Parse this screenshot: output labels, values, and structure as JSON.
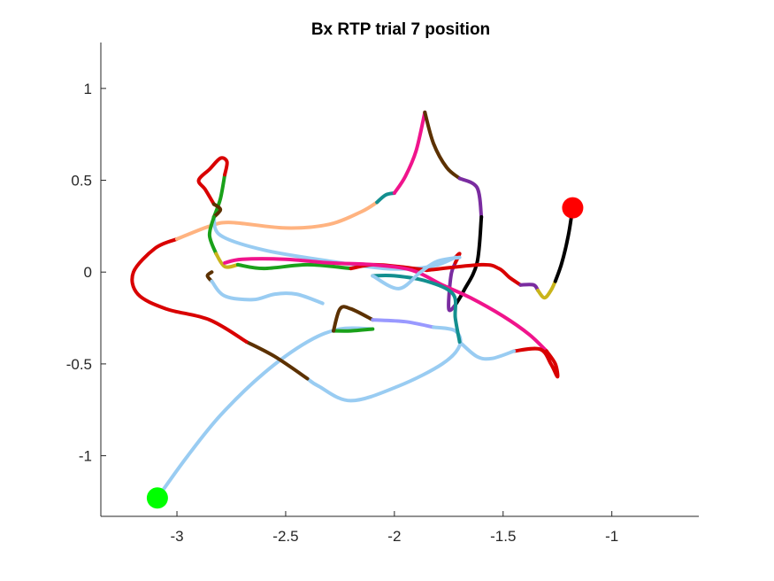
{
  "chart_data": {
    "type": "line",
    "title": "Bx  RTP trial 7 position",
    "xlabel": "",
    "ylabel": "",
    "xlim": [
      -3.35,
      -0.6
    ],
    "ylim": [
      -1.33,
      1.25
    ],
    "xticks": [
      -3,
      -2.5,
      -2,
      -1.5,
      -1
    ],
    "xtick_labels": [
      "-3",
      "-2.5",
      "-2",
      "-1.5",
      "-1"
    ],
    "yticks": [
      -1,
      -0.5,
      0,
      0.5,
      1
    ],
    "ytick_labels": [
      "-1",
      "-0.5",
      "0",
      "0.5",
      "1"
    ],
    "grid": false,
    "box": false,
    "legend": "none",
    "start_marker": {
      "x": -3.09,
      "y": -1.23,
      "color": "#00ff00"
    },
    "end_marker": {
      "x": -1.18,
      "y": 0.35,
      "color": "#ff0000"
    },
    "segments": [
      {
        "color": "#99ccf2",
        "points": [
          [
            -3.09,
            -1.23
          ],
          [
            -2.95,
            -1.0
          ],
          [
            -2.8,
            -0.78
          ],
          [
            -2.6,
            -0.55
          ],
          [
            -2.4,
            -0.38
          ],
          [
            -2.25,
            -0.31
          ],
          [
            -2.1,
            -0.31
          ]
        ]
      },
      {
        "color": "#1aa11a",
        "points": [
          [
            -2.1,
            -0.31
          ],
          [
            -2.2,
            -0.32
          ],
          [
            -2.28,
            -0.32
          ]
        ]
      },
      {
        "color": "#5c3100",
        "points": [
          [
            -2.28,
            -0.32
          ],
          [
            -2.25,
            -0.2
          ],
          [
            -2.2,
            -0.2
          ],
          [
            -2.1,
            -0.26
          ]
        ]
      },
      {
        "color": "#9999ff",
        "points": [
          [
            -2.1,
            -0.26
          ],
          [
            -1.95,
            -0.27
          ],
          [
            -1.82,
            -0.3
          ]
        ]
      },
      {
        "color": "#99ccf2",
        "points": [
          [
            -1.82,
            -0.3
          ],
          [
            -1.72,
            -0.32
          ],
          [
            -1.7,
            -0.4
          ],
          [
            -1.78,
            -0.5
          ],
          [
            -1.98,
            -0.62
          ],
          [
            -2.2,
            -0.7
          ],
          [
            -2.35,
            -0.62
          ],
          [
            -2.4,
            -0.58
          ]
        ]
      },
      {
        "color": "#5c3100",
        "points": [
          [
            -2.4,
            -0.58
          ],
          [
            -2.55,
            -0.46
          ],
          [
            -2.68,
            -0.38
          ]
        ]
      },
      {
        "color": "#d90000",
        "points": [
          [
            -2.68,
            -0.38
          ],
          [
            -2.85,
            -0.26
          ],
          [
            -3.05,
            -0.2
          ],
          [
            -3.18,
            -0.12
          ],
          [
            -3.2,
            0.0
          ],
          [
            -3.1,
            0.13
          ],
          [
            -3.0,
            0.18
          ]
        ]
      },
      {
        "color": "#ffb380",
        "points": [
          [
            -3.0,
            0.18
          ],
          [
            -2.85,
            0.25
          ],
          [
            -2.75,
            0.27
          ],
          [
            -2.5,
            0.24
          ],
          [
            -2.3,
            0.26
          ],
          [
            -2.15,
            0.33
          ],
          [
            -2.08,
            0.38
          ]
        ]
      },
      {
        "color": "#138f8f",
        "points": [
          [
            -2.08,
            0.38
          ],
          [
            -2.04,
            0.42
          ],
          [
            -2.0,
            0.43
          ]
        ]
      },
      {
        "color": "#f0148c",
        "points": [
          [
            -2.0,
            0.43
          ],
          [
            -1.95,
            0.52
          ],
          [
            -1.9,
            0.66
          ],
          [
            -1.86,
            0.87
          ]
        ]
      },
      {
        "color": "#5c3100",
        "points": [
          [
            -1.86,
            0.87
          ],
          [
            -1.82,
            0.7
          ],
          [
            -1.76,
            0.57
          ],
          [
            -1.7,
            0.51
          ]
        ]
      },
      {
        "color": "#7a2ca0",
        "points": [
          [
            -1.7,
            0.51
          ],
          [
            -1.62,
            0.46
          ],
          [
            -1.6,
            0.3
          ]
        ]
      },
      {
        "color": "#000000",
        "points": [
          [
            -1.6,
            0.3
          ],
          [
            -1.62,
            0.05
          ],
          [
            -1.68,
            -0.1
          ],
          [
            -1.72,
            -0.18
          ]
        ]
      },
      {
        "color": "#7a2ca0",
        "points": [
          [
            -1.72,
            -0.18
          ],
          [
            -1.75,
            -0.2
          ],
          [
            -1.74,
            -0.02
          ],
          [
            -1.72,
            0.05
          ]
        ]
      },
      {
        "color": "#d90000",
        "points": [
          [
            -1.72,
            0.05
          ],
          [
            -1.7,
            0.1
          ],
          [
            -1.72,
            0.08
          ]
        ]
      },
      {
        "color": "#99ccf2",
        "points": [
          [
            -1.72,
            0.08
          ],
          [
            -1.8,
            0.04
          ],
          [
            -1.9,
            0.02
          ],
          [
            -2.05,
            0.02
          ],
          [
            -2.3,
            0.06
          ],
          [
            -2.6,
            0.12
          ],
          [
            -2.8,
            0.2
          ],
          [
            -2.83,
            0.3
          ]
        ]
      },
      {
        "color": "#1aa11a",
        "points": [
          [
            -2.83,
            0.3
          ],
          [
            -2.8,
            0.4
          ],
          [
            -2.78,
            0.53
          ]
        ]
      },
      {
        "color": "#d90000",
        "points": [
          [
            -2.78,
            0.53
          ],
          [
            -2.77,
            0.6
          ],
          [
            -2.8,
            0.62
          ],
          [
            -2.85,
            0.56
          ],
          [
            -2.9,
            0.5
          ],
          [
            -2.87,
            0.45
          ],
          [
            -2.83,
            0.37
          ]
        ]
      },
      {
        "color": "#5c3100",
        "points": [
          [
            -2.83,
            0.37
          ],
          [
            -2.8,
            0.34
          ],
          [
            -2.83,
            0.3
          ]
        ]
      },
      {
        "color": "#1aa11a",
        "points": [
          [
            -2.83,
            0.3
          ],
          [
            -2.85,
            0.2
          ],
          [
            -2.82,
            0.1
          ]
        ]
      },
      {
        "color": "#c9b41a",
        "points": [
          [
            -2.82,
            0.1
          ],
          [
            -2.78,
            0.03
          ],
          [
            -2.72,
            0.04
          ]
        ]
      },
      {
        "color": "#1aa11a",
        "points": [
          [
            -2.72,
            0.04
          ],
          [
            -2.6,
            0.02
          ],
          [
            -2.4,
            0.04
          ],
          [
            -2.2,
            0.02
          ]
        ]
      },
      {
        "color": "#d90000",
        "points": [
          [
            -2.2,
            0.02
          ],
          [
            -2.1,
            0.04
          ],
          [
            -1.98,
            0.03
          ],
          [
            -1.85,
            0.01
          ]
        ]
      },
      {
        "color": "#d90000",
        "points": [
          [
            -1.85,
            0.01
          ],
          [
            -1.6,
            0.04
          ],
          [
            -1.52,
            0.02
          ],
          [
            -1.47,
            -0.03
          ],
          [
            -1.42,
            -0.07
          ]
        ]
      },
      {
        "color": "#7a2ca0",
        "points": [
          [
            -1.42,
            -0.07
          ],
          [
            -1.36,
            -0.07
          ],
          [
            -1.34,
            -0.1
          ]
        ]
      },
      {
        "color": "#c9b41a",
        "points": [
          [
            -1.34,
            -0.1
          ],
          [
            -1.31,
            -0.14
          ],
          [
            -1.28,
            -0.1
          ],
          [
            -1.26,
            -0.05
          ]
        ]
      },
      {
        "color": "#000000",
        "points": [
          [
            -1.26,
            -0.05
          ],
          [
            -1.23,
            0.05
          ],
          [
            -1.2,
            0.2
          ],
          [
            -1.18,
            0.35
          ]
        ]
      },
      {
        "color": "#5c3100",
        "points": [
          [
            -2.84,
            0.0
          ],
          [
            -2.86,
            -0.02
          ],
          [
            -2.84,
            -0.05
          ]
        ]
      },
      {
        "color": "#99ccf2",
        "points": [
          [
            -2.84,
            -0.05
          ],
          [
            -2.78,
            -0.13
          ],
          [
            -2.65,
            -0.15
          ],
          [
            -2.55,
            -0.12
          ],
          [
            -2.45,
            -0.12
          ],
          [
            -2.33,
            -0.17
          ]
        ]
      },
      {
        "color": "#f0148c",
        "points": [
          [
            -2.78,
            0.05
          ],
          [
            -2.7,
            0.07
          ],
          [
            -2.5,
            0.07
          ],
          [
            -2.3,
            0.05
          ],
          [
            -2.1,
            0.04
          ],
          [
            -1.92,
            0.01
          ],
          [
            -1.78,
            -0.07
          ],
          [
            -1.65,
            -0.14
          ],
          [
            -1.5,
            -0.24
          ],
          [
            -1.38,
            -0.34
          ],
          [
            -1.3,
            -0.43
          ]
        ]
      },
      {
        "color": "#d90000",
        "points": [
          [
            -1.3,
            -0.43
          ],
          [
            -1.26,
            -0.5
          ],
          [
            -1.25,
            -0.57
          ],
          [
            -1.28,
            -0.5
          ],
          [
            -1.33,
            -0.42
          ],
          [
            -1.45,
            -0.43
          ]
        ]
      },
      {
        "color": "#99ccf2",
        "points": [
          [
            -1.45,
            -0.43
          ],
          [
            -1.55,
            -0.47
          ],
          [
            -1.62,
            -0.46
          ],
          [
            -1.7,
            -0.38
          ]
        ]
      },
      {
        "color": "#138f8f",
        "points": [
          [
            -1.7,
            -0.38
          ],
          [
            -1.72,
            -0.25
          ],
          [
            -1.73,
            -0.12
          ],
          [
            -1.85,
            -0.05
          ],
          [
            -2.0,
            -0.02
          ],
          [
            -2.1,
            -0.02
          ]
        ]
      },
      {
        "color": "#99ccf2",
        "points": [
          [
            -2.1,
            -0.02
          ],
          [
            -1.98,
            -0.09
          ],
          [
            -1.88,
            0.0
          ],
          [
            -1.8,
            0.06
          ],
          [
            -1.7,
            0.08
          ]
        ]
      }
    ]
  }
}
